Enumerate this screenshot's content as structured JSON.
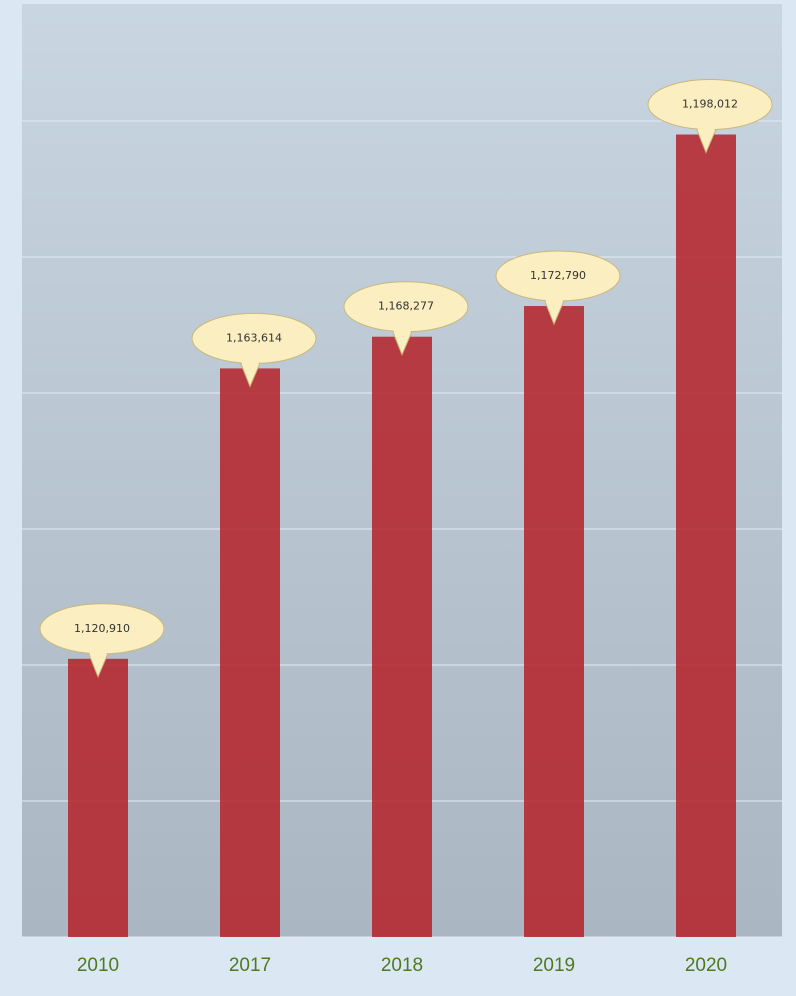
{
  "chart_data": {
    "type": "bar",
    "categories": [
      "2010",
      "2017",
      "2018",
      "2019",
      "2020"
    ],
    "values": [
      1120910,
      1163614,
      1168277,
      1172790,
      1198012
    ],
    "value_labels": [
      "1,120,910",
      "1,163,614",
      "1,168,277",
      "1,172,790",
      "1,198,012"
    ],
    "color": "#b5262c",
    "ylim": [
      1080000,
      1215000
    ],
    "yticks": [
      1080000,
      1100000,
      1120000,
      1140000,
      1160000,
      1180000,
      1200000
    ],
    "grid": true
  }
}
